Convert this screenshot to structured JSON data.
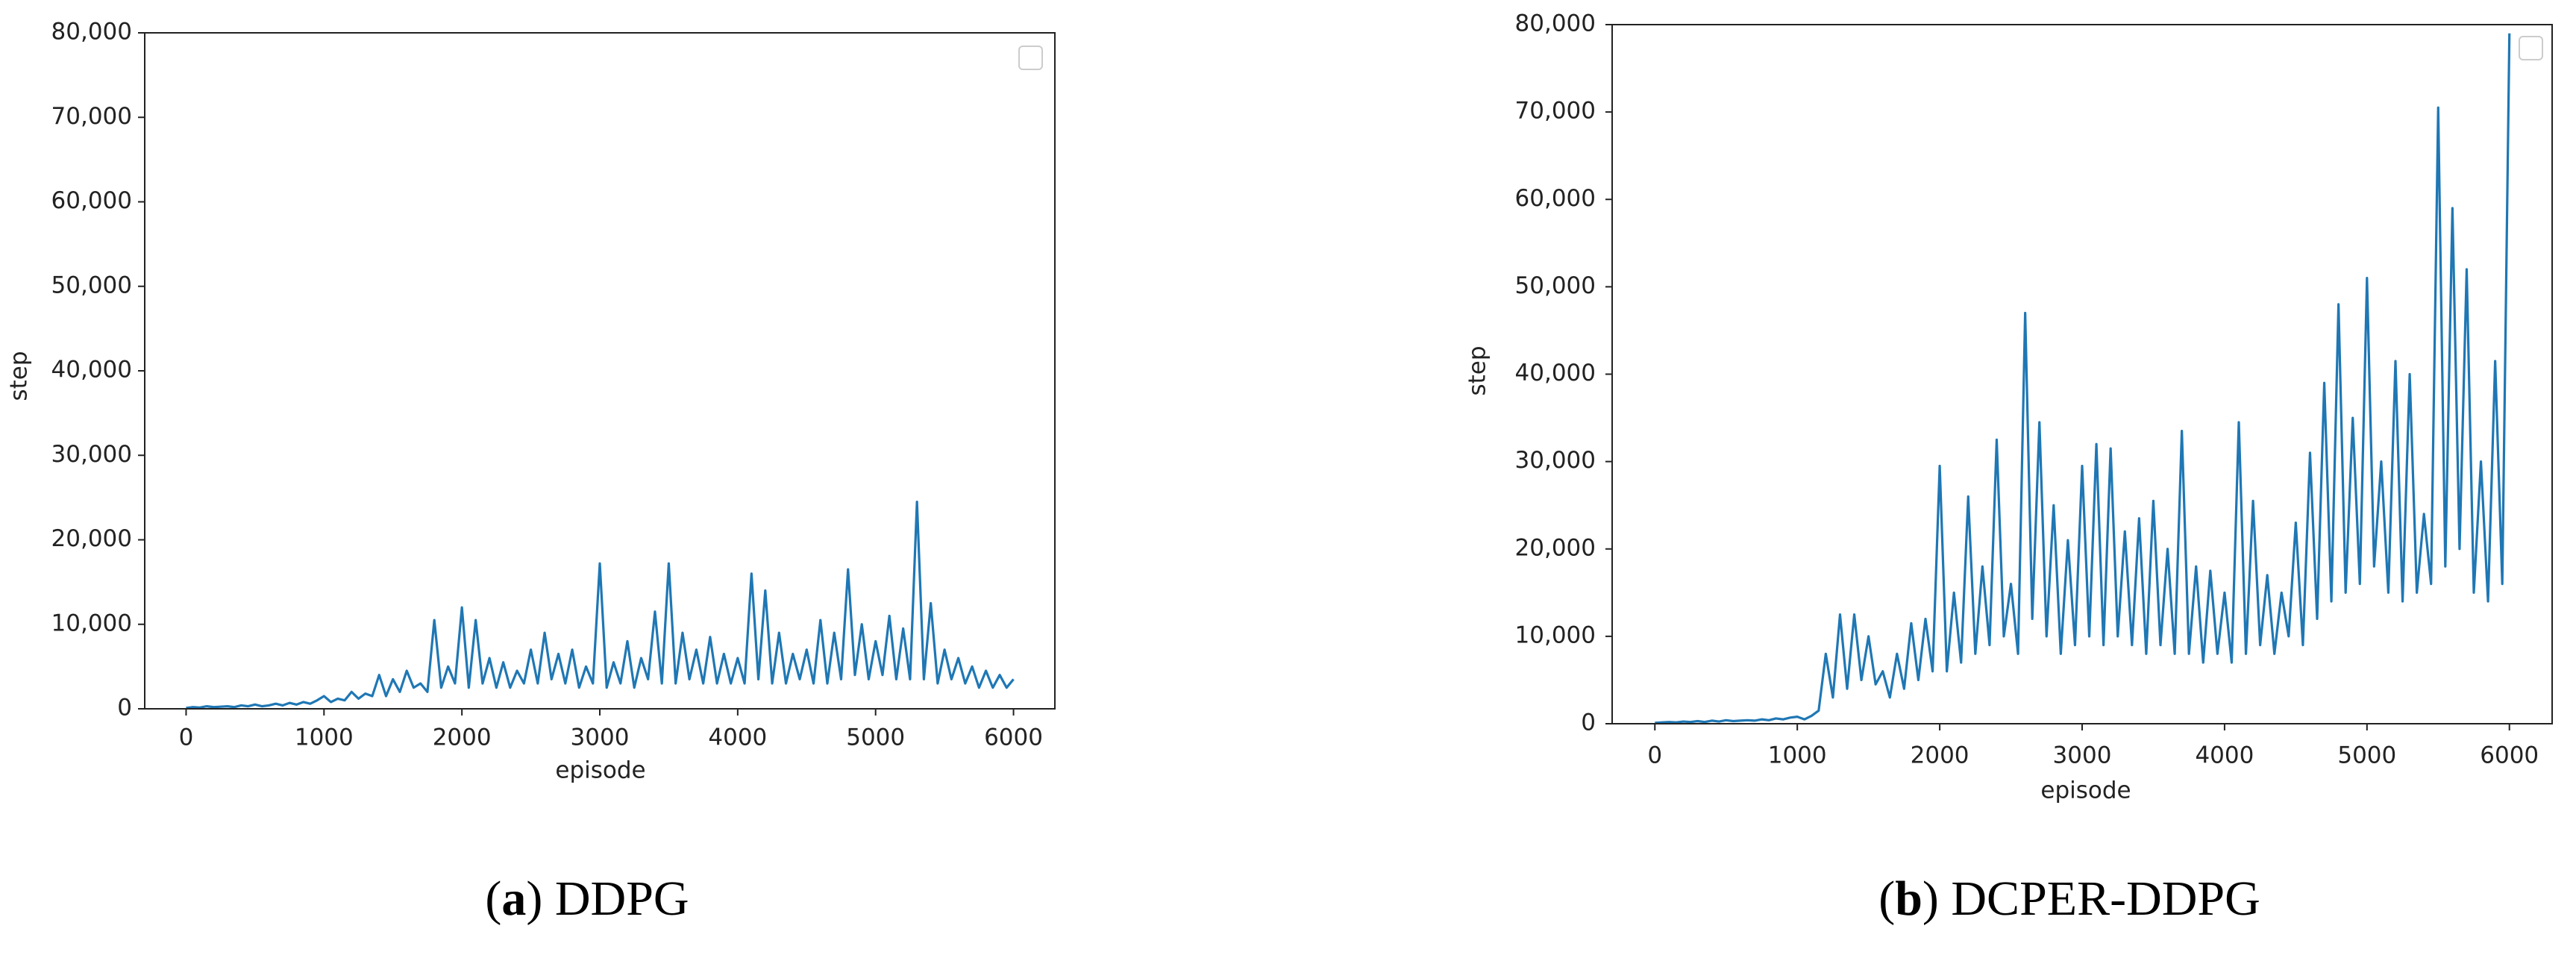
{
  "chart_data": [
    {
      "type": "line",
      "caption_parts": [
        "(",
        "a",
        ") DDPG"
      ],
      "x_label": "episode",
      "y_label": "step",
      "xlim": [
        -300,
        6300
      ],
      "ylim": [
        0,
        80000
      ],
      "xticks": [
        0,
        1000,
        2000,
        3000,
        4000,
        5000,
        6000
      ],
      "yticks": [
        0,
        {
          "value": 10000,
          "label": "10,000"
        },
        {
          "value": 20000,
          "label": "20,000"
        },
        {
          "value": 30000,
          "label": "30,000"
        },
        {
          "value": 40000,
          "label": "40,000"
        },
        {
          "value": 50000,
          "label": "50,000"
        },
        {
          "value": 60000,
          "label": "60,000"
        },
        {
          "value": 70000,
          "label": "70,000"
        },
        {
          "value": 80000,
          "label": "80,000"
        }
      ],
      "legend": "upper right",
      "color": "#1f77b4",
      "x": [
        0,
        50,
        100,
        150,
        200,
        250,
        300,
        350,
        400,
        450,
        500,
        550,
        600,
        650,
        700,
        750,
        800,
        850,
        900,
        950,
        1000,
        1050,
        1100,
        1150,
        1200,
        1250,
        1300,
        1350,
        1400,
        1450,
        1500,
        1550,
        1600,
        1650,
        1700,
        1750,
        1800,
        1850,
        1900,
        1950,
        2000,
        2050,
        2100,
        2150,
        2200,
        2250,
        2300,
        2350,
        2400,
        2450,
        2500,
        2550,
        2600,
        2650,
        2700,
        2750,
        2800,
        2850,
        2900,
        2950,
        3000,
        3050,
        3100,
        3150,
        3200,
        3250,
        3300,
        3350,
        3400,
        3450,
        3500,
        3550,
        3600,
        3650,
        3700,
        3750,
        3800,
        3850,
        3900,
        3950,
        4000,
        4050,
        4100,
        4150,
        4200,
        4250,
        4300,
        4350,
        4400,
        4450,
        4500,
        4550,
        4600,
        4650,
        4700,
        4750,
        4800,
        4850,
        4900,
        4950,
        5000,
        5050,
        5100,
        5150,
        5200,
        5250,
        5300,
        5350,
        5400,
        5450,
        5500,
        5550,
        5600,
        5650,
        5700,
        5750,
        5800,
        5850,
        5900,
        5950,
        6000
      ],
      "values": [
        100,
        200,
        150,
        300,
        200,
        250,
        300,
        200,
        400,
        300,
        500,
        300,
        400,
        600,
        400,
        700,
        500,
        800,
        600,
        1000,
        1500,
        800,
        1200,
        1000,
        2000,
        1200,
        1800,
        1500,
        4000,
        1500,
        3500,
        2000,
        4500,
        2500,
        3000,
        2000,
        10500,
        2500,
        5000,
        3000,
        12000,
        2500,
        10500,
        3000,
        6000,
        2500,
        5500,
        2500,
        4500,
        3000,
        7000,
        3000,
        9000,
        3500,
        6500,
        3000,
        7000,
        2500,
        5000,
        3000,
        17200,
        2500,
        5500,
        3000,
        8000,
        2500,
        6000,
        3500,
        11500,
        3000,
        17200,
        3000,
        9000,
        3500,
        7000,
        3000,
        8500,
        3000,
        6500,
        3000,
        6000,
        3000,
        16000,
        3500,
        14000,
        3000,
        9000,
        3000,
        6500,
        3500,
        7000,
        3000,
        10500,
        3000,
        9000,
        3500,
        16500,
        4000,
        10000,
        3500,
        8000,
        4000,
        11000,
        3500,
        9500,
        3500,
        24500,
        3500,
        12500,
        3000,
        7000,
        3500,
        6000,
        3000,
        5000,
        2500,
        4500,
        2500,
        4000,
        2500,
        3500
      ]
    },
    {
      "type": "line",
      "caption_parts": [
        "(",
        "b",
        ") DCPER-DDPG"
      ],
      "x_label": "episode",
      "y_label": "step",
      "xlim": [
        -300,
        6300
      ],
      "ylim": [
        0,
        80000
      ],
      "xticks": [
        0,
        1000,
        2000,
        3000,
        4000,
        5000,
        6000
      ],
      "yticks": [
        0,
        {
          "value": 10000,
          "label": "10,000"
        },
        {
          "value": 20000,
          "label": "20,000"
        },
        {
          "value": 30000,
          "label": "30,000"
        },
        {
          "value": 40000,
          "label": "40,000"
        },
        {
          "value": 50000,
          "label": "50,000"
        },
        {
          "value": 60000,
          "label": "60,000"
        },
        {
          "value": 70000,
          "label": "70,000"
        },
        {
          "value": 80000,
          "label": "80,000"
        }
      ],
      "legend": "upper right",
      "color": "#1f77b4",
      "x": [
        0,
        50,
        100,
        150,
        200,
        250,
        300,
        350,
        400,
        450,
        500,
        550,
        600,
        650,
        700,
        750,
        800,
        850,
        900,
        950,
        1000,
        1050,
        1100,
        1150,
        1200,
        1250,
        1300,
        1350,
        1400,
        1450,
        1500,
        1550,
        1600,
        1650,
        1700,
        1750,
        1800,
        1850,
        1900,
        1950,
        2000,
        2050,
        2100,
        2150,
        2200,
        2250,
        2300,
        2350,
        2400,
        2450,
        2500,
        2550,
        2600,
        2650,
        2700,
        2750,
        2800,
        2850,
        2900,
        2950,
        3000,
        3050,
        3100,
        3150,
        3200,
        3250,
        3300,
        3350,
        3400,
        3450,
        3500,
        3550,
        3600,
        3650,
        3700,
        3750,
        3800,
        3850,
        3900,
        3950,
        4000,
        4050,
        4100,
        4150,
        4200,
        4250,
        4300,
        4350,
        4400,
        4450,
        4500,
        4550,
        4600,
        4650,
        4700,
        4750,
        4800,
        4850,
        4900,
        4950,
        5000,
        5050,
        5100,
        5150,
        5200,
        5250,
        5300,
        5350,
        5400,
        5450,
        5500,
        5550,
        5600,
        5650,
        5700,
        5750,
        5800,
        5850,
        5900,
        5950,
        6000
      ],
      "values": [
        100,
        150,
        200,
        150,
        250,
        200,
        300,
        200,
        350,
        250,
        400,
        300,
        350,
        400,
        350,
        500,
        400,
        600,
        500,
        700,
        800,
        500,
        900,
        1500,
        8000,
        3000,
        12500,
        4000,
        12500,
        5000,
        10000,
        4500,
        6000,
        3000,
        8000,
        4000,
        11500,
        5000,
        12000,
        6000,
        29500,
        6000,
        15000,
        7000,
        26000,
        8000,
        18000,
        9000,
        32500,
        10000,
        16000,
        8000,
        47000,
        12000,
        34500,
        10000,
        25000,
        8000,
        21000,
        9000,
        29500,
        10000,
        32000,
        9000,
        31500,
        10000,
        22000,
        9000,
        23500,
        8000,
        25500,
        9000,
        20000,
        8000,
        33500,
        8000,
        18000,
        7000,
        17500,
        8000,
        15000,
        7000,
        34500,
        8000,
        25500,
        9000,
        17000,
        8000,
        15000,
        10000,
        23000,
        9000,
        31000,
        12000,
        39000,
        14000,
        48000,
        15000,
        35000,
        16000,
        51000,
        18000,
        30000,
        15000,
        41500,
        14000,
        40000,
        15000,
        24000,
        16000,
        70500,
        18000,
        59000,
        20000,
        52000,
        15000,
        30000,
        14000,
        41500,
        16000,
        79000
      ]
    }
  ]
}
